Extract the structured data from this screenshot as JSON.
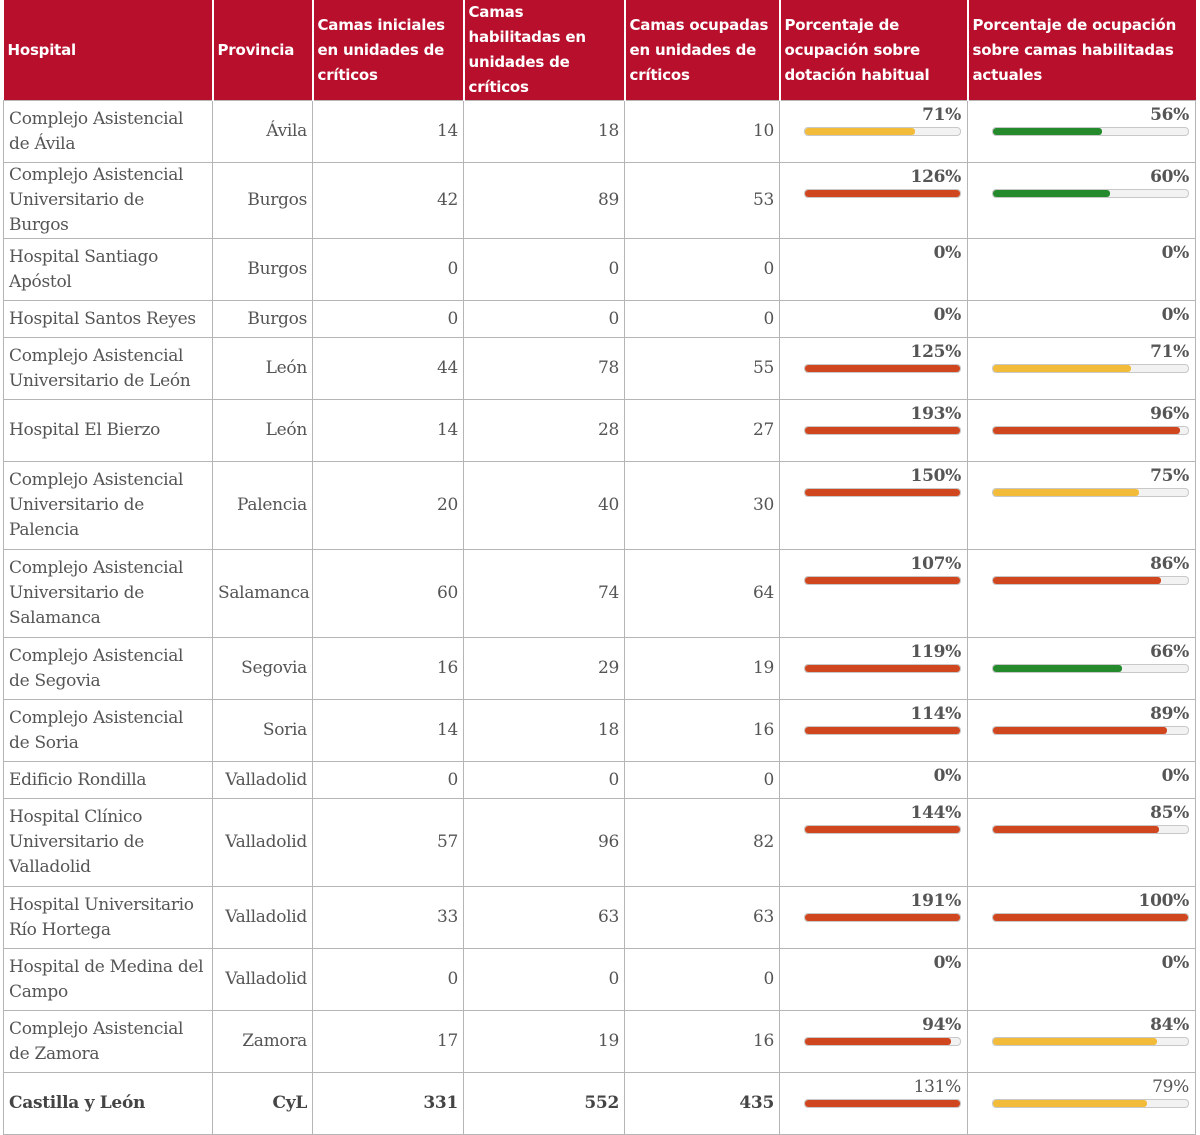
{
  "headers": {
    "hospital": "Hospital",
    "provincia": "Provincia",
    "iniciales": "Camas iniciales en unidades de críticos",
    "habilitadas": "Camas habilitadas en unidades de críticos",
    "ocupadas": "Camas ocupadas en unidades de críticos",
    "pct_habitual": "Porcentaje de ocupación sobre dotación habitual",
    "pct_actual": "Porcentaje de ocupación sobre camas habilitadas actuales"
  },
  "colors": {
    "header_bg": "#b80f2d",
    "bar_red": "#d0461e",
    "bar_yellow": "#f2bc3a",
    "bar_green": "#248a2c",
    "bar_track": "#f2f2f2"
  },
  "rows": [
    {
      "hospital": "Complejo Asistencial de Ávila",
      "provincia": "Ávila",
      "iniciales": "14",
      "habilitadas": "18",
      "ocupadas": "10",
      "pct_habitual": "71%",
      "pct_habitual_value": 71,
      "pct_habitual_color": "yellow",
      "pct_actual": "56%",
      "pct_actual_value": 56,
      "pct_actual_color": "green"
    },
    {
      "hospital": "Complejo Asistencial Universitario de Burgos",
      "provincia": "Burgos",
      "iniciales": "42",
      "habilitadas": "89",
      "ocupadas": "53",
      "pct_habitual": "126%",
      "pct_habitual_value": 126,
      "pct_habitual_color": "red",
      "pct_actual": "60%",
      "pct_actual_value": 60,
      "pct_actual_color": "green"
    },
    {
      "hospital": "Hospital Santiago Apóstol",
      "provincia": "Burgos",
      "iniciales": "0",
      "habilitadas": "0",
      "ocupadas": "0",
      "pct_habitual": "0%",
      "pct_habitual_value": 0,
      "pct_habitual_color": "none",
      "pct_actual": "0%",
      "pct_actual_value": 0,
      "pct_actual_color": "none"
    },
    {
      "hospital": "Hospital Santos Reyes",
      "provincia": "Burgos",
      "iniciales": "0",
      "habilitadas": "0",
      "ocupadas": "0",
      "pct_habitual": "0%",
      "pct_habitual_value": 0,
      "pct_habitual_color": "none",
      "pct_actual": "0%",
      "pct_actual_value": 0,
      "pct_actual_color": "none"
    },
    {
      "hospital": "Complejo Asistencial Universitario de León",
      "provincia": "León",
      "iniciales": "44",
      "habilitadas": "78",
      "ocupadas": "55",
      "pct_habitual": "125%",
      "pct_habitual_value": 125,
      "pct_habitual_color": "red",
      "pct_actual": "71%",
      "pct_actual_value": 71,
      "pct_actual_color": "yellow"
    },
    {
      "hospital": "Hospital El Bierzo",
      "provincia": "León",
      "iniciales": "14",
      "habilitadas": "28",
      "ocupadas": "27",
      "pct_habitual": "193%",
      "pct_habitual_value": 193,
      "pct_habitual_color": "red",
      "pct_actual": "96%",
      "pct_actual_value": 96,
      "pct_actual_color": "red"
    },
    {
      "hospital": "Complejo Asistencial Universitario de Palencia",
      "provincia": "Palencia",
      "iniciales": "20",
      "habilitadas": "40",
      "ocupadas": "30",
      "pct_habitual": "150%",
      "pct_habitual_value": 150,
      "pct_habitual_color": "red",
      "pct_actual": "75%",
      "pct_actual_value": 75,
      "pct_actual_color": "yellow"
    },
    {
      "hospital": "Complejo Asistencial Universitario de Salamanca",
      "provincia": "Salamanca",
      "iniciales": "60",
      "habilitadas": "74",
      "ocupadas": "64",
      "pct_habitual": "107%",
      "pct_habitual_value": 107,
      "pct_habitual_color": "red",
      "pct_actual": "86%",
      "pct_actual_value": 86,
      "pct_actual_color": "red"
    },
    {
      "hospital": "Complejo Asistencial de Segovia",
      "provincia": "Segovia",
      "iniciales": "16",
      "habilitadas": "29",
      "ocupadas": "19",
      "pct_habitual": "119%",
      "pct_habitual_value": 119,
      "pct_habitual_color": "red",
      "pct_actual": "66%",
      "pct_actual_value": 66,
      "pct_actual_color": "green"
    },
    {
      "hospital": "Complejo Asistencial de Soria",
      "provincia": "Soria",
      "iniciales": "14",
      "habilitadas": "18",
      "ocupadas": "16",
      "pct_habitual": "114%",
      "pct_habitual_value": 114,
      "pct_habitual_color": "red",
      "pct_actual": "89%",
      "pct_actual_value": 89,
      "pct_actual_color": "red"
    },
    {
      "hospital": "Edificio Rondilla",
      "provincia": "Valladolid",
      "iniciales": "0",
      "habilitadas": "0",
      "ocupadas": "0",
      "pct_habitual": "0%",
      "pct_habitual_value": 0,
      "pct_habitual_color": "none",
      "pct_actual": "0%",
      "pct_actual_value": 0,
      "pct_actual_color": "none"
    },
    {
      "hospital": "Hospital Clínico Universitario de Valladolid",
      "provincia": "Valladolid",
      "iniciales": "57",
      "habilitadas": "96",
      "ocupadas": "82",
      "pct_habitual": "144%",
      "pct_habitual_value": 144,
      "pct_habitual_color": "red",
      "pct_actual": "85%",
      "pct_actual_value": 85,
      "pct_actual_color": "red"
    },
    {
      "hospital": "Hospital Universitario Río Hortega",
      "provincia": "Valladolid",
      "iniciales": "33",
      "habilitadas": "63",
      "ocupadas": "63",
      "pct_habitual": "191%",
      "pct_habitual_value": 191,
      "pct_habitual_color": "red",
      "pct_actual": "100%",
      "pct_actual_value": 100,
      "pct_actual_color": "red"
    },
    {
      "hospital": "Hospital de Medina del Campo",
      "provincia": "Valladolid",
      "iniciales": "0",
      "habilitadas": "0",
      "ocupadas": "0",
      "pct_habitual": "0%",
      "pct_habitual_value": 0,
      "pct_habitual_color": "none",
      "pct_actual": "0%",
      "pct_actual_value": 0,
      "pct_actual_color": "none"
    },
    {
      "hospital": "Complejo Asistencial de Zamora",
      "provincia": "Zamora",
      "iniciales": "17",
      "habilitadas": "19",
      "ocupadas": "16",
      "pct_habitual": "94%",
      "pct_habitual_value": 94,
      "pct_habitual_color": "red",
      "pct_actual": "84%",
      "pct_actual_value": 84,
      "pct_actual_color": "yellow"
    }
  ],
  "total": {
    "hospital": "Castilla y León",
    "provincia": "CyL",
    "iniciales": "331",
    "habilitadas": "552",
    "ocupadas": "435",
    "pct_habitual": "131%",
    "pct_habitual_value": 131,
    "pct_habitual_color": "red",
    "pct_actual": "79%",
    "pct_actual_value": 79,
    "pct_actual_color": "yellow"
  }
}
